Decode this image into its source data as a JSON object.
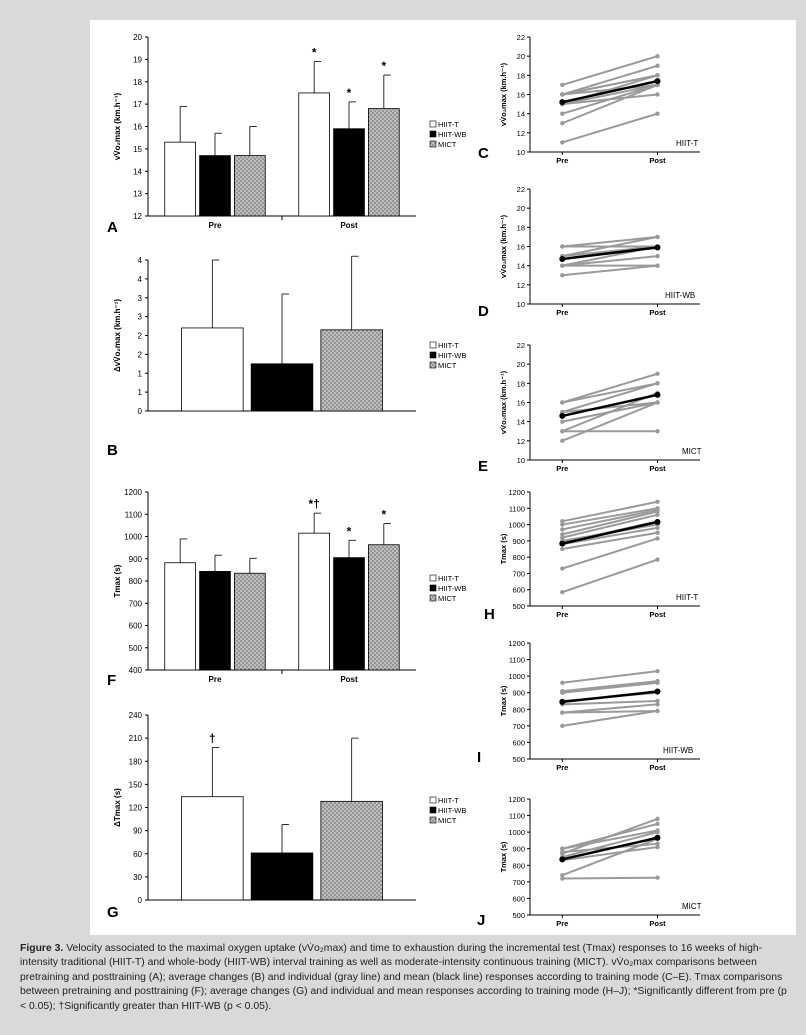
{
  "colors": {
    "background": "#d9d9d9",
    "white_bar": "#ffffff",
    "black_bar": "#000000",
    "dotted_bar": "#a8a8a8",
    "individual_line": "#9a9a9a",
    "mean_line": "#000000"
  },
  "legend": [
    "HIIT-T",
    "HIIT-WB",
    "MICT"
  ],
  "caption": {
    "figure_label": "Figure 3.",
    "text": " Velocity associated to the maximal oxygen uptake (vV̇o₂max) and time to exhaustion during the incremental test (Tmax) responses to 16 weeks of high-intensity traditional (HIIT-T) and whole-body (HIIT-WB) interval training as well as moderate-intensity continuous training (MICT). vV̇o₂max comparisons between pretraining and posttraining (A); average changes (B) and individual (gray line) and mean (black line) responses according to training mode (C–E). Tmax comparisons between pretraining and posttraining (F); average changes (G) and individual and mean responses according to training mode (H–J); *Significantly different from pre (p < 0.05); †Significantly greater than HIIT-WB (p < 0.05)."
  },
  "chart_data": [
    {
      "id": "A",
      "type": "bar",
      "panel_label": "A",
      "ylabel": "vV̇o₂max (km.h⁻¹)",
      "ylim": [
        12,
        20
      ],
      "yticks": [
        12,
        13,
        14,
        15,
        16,
        17,
        18,
        19,
        20
      ],
      "ytick_labels": [
        "12",
        "13",
        "14",
        "15",
        "16",
        "17",
        "18",
        "19",
        "20"
      ],
      "categories": [
        "Pre",
        "Post"
      ],
      "series": [
        {
          "name": "HIIT-T",
          "values": [
            15.3,
            17.5
          ],
          "errors": [
            1.6,
            1.4
          ],
          "markers": [
            "",
            "*"
          ]
        },
        {
          "name": "HIIT-WB",
          "values": [
            14.7,
            15.9
          ],
          "errors": [
            1.0,
            1.2
          ],
          "markers": [
            "",
            "*"
          ]
        },
        {
          "name": "MICT",
          "values": [
            14.7,
            16.8
          ],
          "errors": [
            1.3,
            1.5
          ],
          "markers": [
            "",
            "*"
          ]
        }
      ]
    },
    {
      "id": "B",
      "type": "bar",
      "panel_label": "B",
      "ylabel": "ΔvV̇o₂max (km.h⁻¹)",
      "ylim": [
        0,
        4
      ],
      "yticks": [
        0,
        0.5,
        1,
        1.5,
        2,
        2.5,
        3,
        3.5,
        4
      ],
      "ytick_labels": [
        "0",
        "1",
        "1",
        "2",
        "2",
        "3",
        "3",
        "4",
        "4"
      ],
      "categories": [
        ""
      ],
      "series": [
        {
          "name": "HIIT-T",
          "values": [
            2.2
          ],
          "errors": [
            1.8
          ],
          "markers": [
            ""
          ]
        },
        {
          "name": "HIIT-WB",
          "values": [
            1.25
          ],
          "errors": [
            1.85
          ],
          "markers": [
            ""
          ]
        },
        {
          "name": "MICT",
          "values": [
            2.15
          ],
          "errors": [
            1.95
          ],
          "markers": [
            ""
          ]
        }
      ]
    },
    {
      "id": "F",
      "type": "bar",
      "panel_label": "F",
      "ylabel": "Tmax (s)",
      "ylim": [
        400,
        1200
      ],
      "yticks": [
        400,
        500,
        600,
        700,
        800,
        900,
        1000,
        1100,
        1200
      ],
      "ytick_labels": [
        "400",
        "500",
        "600",
        "700",
        "800",
        "900",
        "1000",
        "1100",
        "1200"
      ],
      "categories": [
        "Pre",
        "Post"
      ],
      "series": [
        {
          "name": "HIIT-T",
          "values": [
            882,
            1015
          ],
          "errors": [
            107,
            90
          ],
          "markers": [
            "",
            "*†"
          ]
        },
        {
          "name": "HIIT-WB",
          "values": [
            843,
            905
          ],
          "errors": [
            73,
            78
          ],
          "markers": [
            "",
            "*"
          ]
        },
        {
          "name": "MICT",
          "values": [
            835,
            963
          ],
          "errors": [
            67,
            95
          ],
          "markers": [
            "",
            "*"
          ]
        }
      ]
    },
    {
      "id": "G",
      "type": "bar",
      "panel_label": "G",
      "ylabel": "ΔTmax (s)",
      "ylim": [
        0,
        240
      ],
      "yticks": [
        0,
        30,
        60,
        90,
        120,
        150,
        180,
        210,
        240
      ],
      "ytick_labels": [
        "0",
        "30",
        "60",
        "90",
        "120",
        "150",
        "180",
        "210",
        "240"
      ],
      "categories": [
        ""
      ],
      "series": [
        {
          "name": "HIIT-T",
          "values": [
            134
          ],
          "errors": [
            64
          ],
          "markers": [
            "†"
          ]
        },
        {
          "name": "HIIT-WB",
          "values": [
            61
          ],
          "errors": [
            37
          ],
          "markers": [
            ""
          ]
        },
        {
          "name": "MICT",
          "values": [
            128
          ],
          "errors": [
            82
          ],
          "markers": [
            ""
          ]
        }
      ]
    },
    {
      "id": "C",
      "type": "line",
      "panel_label": "C",
      "group_label": "HIIT-T",
      "ylabel": "vV̇o₂max (km.h⁻¹)",
      "ylim": [
        10,
        22
      ],
      "yticks": [
        10,
        12,
        14,
        16,
        18,
        20,
        22
      ],
      "ytick_labels": [
        "10",
        "12",
        "14",
        "16",
        "18",
        "20",
        "22"
      ],
      "x": [
        "Pre",
        "Post"
      ],
      "individual": [
        [
          11,
          14
        ],
        [
          13,
          17
        ],
        [
          14,
          17
        ],
        [
          15,
          16
        ],
        [
          15,
          17
        ],
        [
          16,
          17
        ],
        [
          16,
          18
        ],
        [
          16,
          19
        ],
        [
          17,
          20
        ],
        [
          15,
          18
        ],
        [
          16,
          18
        ]
      ],
      "mean": [
        15.2,
        17.4
      ]
    },
    {
      "id": "D",
      "type": "line",
      "panel_label": "D",
      "group_label": "HIIT-WB",
      "ylabel": "vV̇o₂max (km.h⁻¹)",
      "ylim": [
        10,
        22
      ],
      "yticks": [
        10,
        12,
        14,
        16,
        18,
        20,
        22
      ],
      "ytick_labels": [
        "10",
        "12",
        "14",
        "16",
        "18",
        "20",
        "22"
      ],
      "x": [
        "Pre",
        "Post"
      ],
      "individual": [
        [
          13,
          14
        ],
        [
          14,
          15
        ],
        [
          14,
          16
        ],
        [
          15,
          16
        ],
        [
          16,
          17
        ],
        [
          16,
          16
        ],
        [
          15,
          17
        ],
        [
          14,
          14
        ]
      ],
      "mean": [
        14.7,
        15.9
      ]
    },
    {
      "id": "E",
      "type": "line",
      "panel_label": "E",
      "group_label": "MICT",
      "ylabel": "vV̇o₂max (km.h⁻¹)",
      "ylim": [
        10,
        22
      ],
      "yticks": [
        10,
        12,
        14,
        16,
        18,
        20,
        22
      ],
      "ytick_labels": [
        "10",
        "12",
        "14",
        "16",
        "18",
        "20",
        "22"
      ],
      "x": [
        "Pre",
        "Post"
      ],
      "individual": [
        [
          12,
          16
        ],
        [
          13,
          13
        ],
        [
          13,
          17
        ],
        [
          14,
          16
        ],
        [
          15,
          18
        ],
        [
          16,
          19
        ],
        [
          16,
          18
        ],
        [
          15,
          16
        ]
      ],
      "mean": [
        14.6,
        16.8
      ]
    },
    {
      "id": "H",
      "type": "line",
      "panel_label": "H",
      "group_label": "HIIT-T",
      "ylabel": "Tmax (s)",
      "ylim": [
        500,
        1200
      ],
      "yticks": [
        500,
        600,
        700,
        800,
        900,
        1000,
        1100,
        1200
      ],
      "ytick_labels": [
        "500",
        "600",
        "700",
        "800",
        "900",
        "1000",
        "1100",
        "1200"
      ],
      "x": [
        "Pre",
        "Post"
      ],
      "individual": [
        [
          585,
          785
        ],
        [
          730,
          915
        ],
        [
          850,
          950
        ],
        [
          880,
          980
        ],
        [
          900,
          1000
        ],
        [
          920,
          1060
        ],
        [
          940,
          1080
        ],
        [
          970,
          1090
        ],
        [
          1000,
          1100
        ],
        [
          1020,
          1140
        ],
        [
          890,
          1020
        ]
      ],
      "mean": [
        883,
        1016
      ]
    },
    {
      "id": "I",
      "type": "line",
      "panel_label": "I",
      "group_label": "HIIT-WB",
      "ylabel": "Tmax (s)",
      "ylim": [
        500,
        1200
      ],
      "yticks": [
        500,
        600,
        700,
        800,
        900,
        1000,
        1100,
        1200
      ],
      "ytick_labels": [
        "500",
        "600",
        "700",
        "800",
        "900",
        "1000",
        "1100",
        "1200"
      ],
      "x": [
        "Pre",
        "Post"
      ],
      "individual": [
        [
          700,
          790
        ],
        [
          780,
          790
        ],
        [
          830,
          850
        ],
        [
          900,
          960
        ],
        [
          910,
          970
        ],
        [
          960,
          1030
        ],
        [
          850,
          900
        ],
        [
          780,
          830
        ]
      ],
      "mean": [
        845,
        907
      ]
    },
    {
      "id": "J",
      "type": "line",
      "panel_label": "J",
      "group_label": "MICT",
      "ylabel": "Tmax (s)",
      "ylim": [
        500,
        1200
      ],
      "yticks": [
        500,
        600,
        700,
        800,
        900,
        1000,
        1100,
        1200
      ],
      "ytick_labels": [
        "500",
        "600",
        "700",
        "800",
        "900",
        "1000",
        "1100",
        "1200"
      ],
      "x": [
        "Pre",
        "Post"
      ],
      "individual": [
        [
          720,
          725
        ],
        [
          740,
          960
        ],
        [
          830,
          910
        ],
        [
          850,
          1000
        ],
        [
          870,
          1080
        ],
        [
          900,
          1010
        ],
        [
          880,
          930
        ],
        [
          900,
          1050
        ]
      ],
      "mean": [
        836,
        966
      ]
    }
  ]
}
